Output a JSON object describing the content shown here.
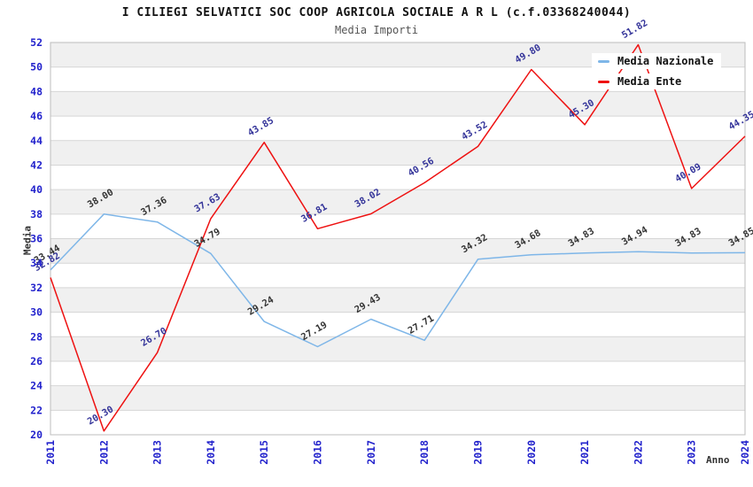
{
  "header": {
    "title": "I CILIEGI SELVATICI SOC COOP AGRICOLA SOCIALE A R L (c.f.03368240044)",
    "subtitle": "Media Importi"
  },
  "axes": {
    "y_label": "Media",
    "x_label": "Anno"
  },
  "legend": {
    "items": [
      {
        "label": "Media Nazionale",
        "color": "#7EB6E8"
      },
      {
        "label": "Media Ente",
        "color": "#EE1111"
      }
    ]
  },
  "colors": {
    "band_gray": "#f0f0f0",
    "band_white": "#ffffff",
    "gridline": "#d6d6d6",
    "plot_border": "#bdbdbd",
    "tick_label": "#2222CC",
    "title": "#111111",
    "subtitle": "#555555"
  },
  "chart_data": {
    "type": "line",
    "title": "I CILIEGI SELVATICI SOC COOP AGRICOLA SOCIALE A R L (c.f.03368240044)",
    "subtitle": "Media Importi",
    "xlabel": "Anno",
    "ylabel": "Media",
    "categories": [
      "2011",
      "2012",
      "2013",
      "2014",
      "2015",
      "2016",
      "2017",
      "2018",
      "2019",
      "2020",
      "2021",
      "2022",
      "2023",
      "2024"
    ],
    "series": [
      {
        "name": "Media Nazionale",
        "color": "#7EB6E8",
        "label_color": "#333333",
        "values": [
          33.44,
          38.0,
          37.36,
          34.79,
          29.24,
          27.19,
          29.43,
          27.71,
          34.32,
          34.68,
          34.83,
          34.94,
          34.83,
          34.85
        ]
      },
      {
        "name": "Media Ente",
        "color": "#EE1111",
        "label_color": "#333399",
        "values": [
          32.82,
          20.3,
          26.7,
          37.63,
          43.85,
          36.81,
          38.02,
          40.56,
          43.52,
          49.8,
          45.3,
          51.82,
          40.09,
          44.35
        ]
      }
    ],
    "ylim": [
      20,
      52
    ],
    "ytick_step": 2,
    "grid": "horizontal-bands",
    "legend_position": "top-right",
    "point_labels": "rotated -30deg, two decimals"
  }
}
